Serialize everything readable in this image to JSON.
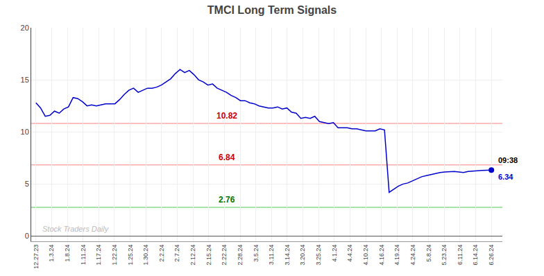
{
  "chart_data": {
    "type": "line",
    "title": "TMCI Long Term Signals",
    "x": [
      0,
      0.2959,
      0.5918,
      0.8878,
      1.1837,
      1.4796,
      1.7755,
      2.0714,
      2.3673,
      2.6633,
      2.9592,
      3.2551,
      3.551,
      3.8469,
      4.1429,
      4.4388,
      4.7347,
      5.0306,
      5.3265,
      5.6224,
      5.9184,
      6.2143,
      6.5102,
      6.8061,
      7.102,
      7.398,
      7.6939,
      7.9898,
      8.2857,
      8.5816,
      8.8776,
      9.1735,
      9.4694,
      9.7653,
      10.0612,
      10.3571,
      10.6531,
      10.949,
      11.2449,
      11.5408,
      11.8367,
      12.1327,
      12.4286,
      12.7245,
      13.0204,
      13.3163,
      13.6122,
      13.9082,
      14.2041,
      14.5,
      14.7959,
      15.0918,
      15.3878,
      15.6837,
      15.9796,
      16.2755,
      16.5714,
      16.8673,
      17.1633,
      17.4592,
      17.7551,
      18.051,
      18.3469,
      18.6429,
      18.9388,
      19.2347,
      19.5306,
      19.8265,
      20.1224,
      20.4184,
      20.7143,
      21.0102,
      21.3061,
      21.602,
      21.898,
      22.1939,
      22.4898,
      22.7857,
      23.0816,
      23.3776,
      23.6735,
      23.9694,
      24.2653,
      24.5612,
      24.8571,
      25.1531,
      25.449,
      25.7449,
      26.0408,
      26.3367,
      26.6327,
      26.9286,
      27.2245,
      27.5204,
      27.8163,
      28.1122,
      28.4082,
      28.7041,
      29
    ],
    "values": [
      12.8,
      12.3,
      11.5,
      11.6,
      12.0,
      11.8,
      12.2,
      12.4,
      13.3,
      13.2,
      12.9,
      12.5,
      12.6,
      12.5,
      12.6,
      12.7,
      12.7,
      12.7,
      13.1,
      13.6,
      14.0,
      14.2,
      13.8,
      14.0,
      14.2,
      14.2,
      14.3,
      14.5,
      14.8,
      15.1,
      15.6,
      16.0,
      15.7,
      15.9,
      15.5,
      15.0,
      14.8,
      14.5,
      14.6,
      14.2,
      14.0,
      13.8,
      13.5,
      13.3,
      13.0,
      13.0,
      12.8,
      12.7,
      12.5,
      12.4,
      12.3,
      12.3,
      12.4,
      12.2,
      12.3,
      11.9,
      11.8,
      11.3,
      11.4,
      11.3,
      11.5,
      11.0,
      10.9,
      10.8,
      10.9,
      10.4,
      10.4,
      10.4,
      10.3,
      10.3,
      10.2,
      10.1,
      10.1,
      10.1,
      10.3,
      10.2,
      4.2,
      4.5,
      4.8,
      5.0,
      5.1,
      5.3,
      5.5,
      5.7,
      5.8,
      5.9,
      6.0,
      6.1,
      6.15,
      6.2,
      6.2,
      6.15,
      6.1,
      6.2,
      6.25,
      6.3,
      6.3,
      6.32,
      6.34
    ],
    "color": "#0000cc",
    "xlim": [
      -0.3,
      29.7
    ],
    "xticks": [
      {
        "value": 0,
        "label": "12.27.23"
      },
      {
        "value": 1,
        "label": "1.3.24"
      },
      {
        "value": 2,
        "label": "1.8.24"
      },
      {
        "value": 3,
        "label": "1.11.24"
      },
      {
        "value": 4,
        "label": "1.17.24"
      },
      {
        "value": 5,
        "label": "1.22.24"
      },
      {
        "value": 6,
        "label": "1.25.24"
      },
      {
        "value": 7,
        "label": "1.30.24"
      },
      {
        "value": 8,
        "label": "2.2.24"
      },
      {
        "value": 9,
        "label": "2.7.24"
      },
      {
        "value": 10,
        "label": "2.12.24"
      },
      {
        "value": 11,
        "label": "2.15.24"
      },
      {
        "value": 12,
        "label": "2.22.24"
      },
      {
        "value": 13,
        "label": "2.28.24"
      },
      {
        "value": 14,
        "label": "3.5.24"
      },
      {
        "value": 15,
        "label": "3.11.24"
      },
      {
        "value": 16,
        "label": "3.14.24"
      },
      {
        "value": 17,
        "label": "3.20.24"
      },
      {
        "value": 18,
        "label": "3.25.24"
      },
      {
        "value": 19,
        "label": "4.1.24"
      },
      {
        "value": 20,
        "label": "4.4.24"
      },
      {
        "value": 21,
        "label": "4.10.24"
      },
      {
        "value": 22,
        "label": "4.16.24"
      },
      {
        "value": 23,
        "label": "4.19.24"
      },
      {
        "value": 24,
        "label": "4.24.24"
      },
      {
        "value": 25,
        "label": "5.8.24"
      },
      {
        "value": 26,
        "label": "5.23.24"
      },
      {
        "value": 27,
        "label": "6.11.24"
      },
      {
        "value": 28,
        "label": "6.14.24"
      },
      {
        "value": 29,
        "label": "6.26.24"
      }
    ],
    "ylim": [
      -0.5,
      20
    ],
    "yticks": [
      0,
      5,
      10,
      15,
      20
    ],
    "grid": true,
    "hlines": [
      {
        "y": 10.82,
        "label": "10.82",
        "color": "#ffaaaa",
        "label_color": "#cc0000"
      },
      {
        "y": 6.84,
        "label": "6.84",
        "color": "#ffaaaa",
        "label_color": "#cc0000"
      },
      {
        "y": 2.76,
        "label": "2.76",
        "color": "#88dd88",
        "label_color": "#007700"
      }
    ],
    "last_point": {
      "value": 6.34,
      "label": "6.34",
      "time_label": "09:38",
      "color": "#0000cc"
    },
    "watermark": "Stock Traders Daily"
  }
}
